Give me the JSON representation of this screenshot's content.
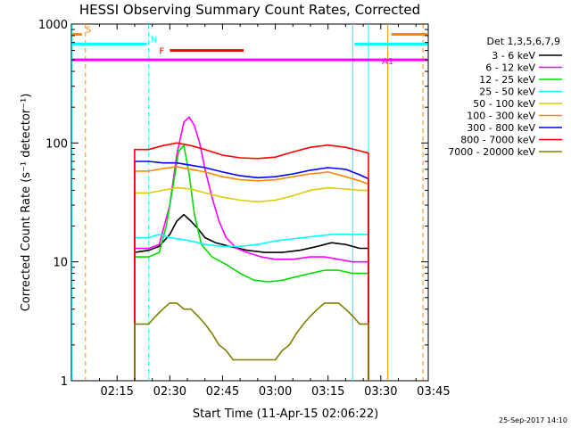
{
  "chart_data": {
    "type": "line",
    "title": "HESSI Observing Summary Count Rates, Corrected",
    "xlabel": "Start Time (11-Apr-15 02:06:22)",
    "ylabel": "Corrected Count Rate (s⁻¹ detector⁻¹)",
    "yscale": "log",
    "xlim_minutes": [
      2.0,
      103.5
    ],
    "ylim": [
      1,
      1000
    ],
    "x_tick_labels": [
      "02:15",
      "02:30",
      "02:45",
      "03:00",
      "03:15",
      "03:30",
      "03:45"
    ],
    "x_tick_minutes": [
      15,
      30,
      45,
      60,
      75,
      90,
      105
    ],
    "y_tick_labels": [
      "1",
      "10",
      "100",
      "1000"
    ],
    "y_tick_values": [
      1,
      10,
      100,
      1000
    ],
    "legend_header": "Det 1,3,5,6,7,9",
    "stamp": "25-Sep-2017 14:10",
    "series": [
      {
        "name": "3 - 6 keV",
        "color": "#000000",
        "x": [
          20,
          24,
          27,
          30,
          32,
          34,
          36,
          38,
          40,
          43,
          47,
          52,
          57,
          62,
          67,
          72,
          76,
          80,
          84,
          86.5
        ],
        "y": [
          12,
          12.5,
          13.5,
          17,
          22,
          25,
          22,
          19,
          16,
          14.5,
          13.5,
          12.5,
          12,
          12,
          12.5,
          13.5,
          14.5,
          14,
          13,
          13
        ]
      },
      {
        "name": "6 - 12 keV",
        "color": "#ff00ff",
        "x": [
          20,
          24,
          27,
          30,
          32,
          34,
          35.5,
          37,
          38.5,
          40,
          42,
          44,
          46,
          49,
          52,
          56,
          60,
          65,
          70,
          74,
          78,
          82,
          86.5
        ],
        "y": [
          13,
          13,
          14,
          30,
          80,
          150,
          165,
          140,
          100,
          60,
          35,
          22,
          16,
          13,
          12,
          11,
          10.5,
          10.5,
          11,
          11,
          10.5,
          10,
          10
        ]
      },
      {
        "name": "12 - 25 keV",
        "color": "#00dd00",
        "x": [
          20,
          24,
          27,
          29,
          31,
          32.5,
          34,
          35.5,
          37,
          39,
          42,
          46,
          50,
          54,
          58,
          62,
          66,
          70,
          74,
          78,
          82,
          86.5
        ],
        "y": [
          11,
          11,
          12,
          20,
          45,
          85,
          95,
          55,
          25,
          14,
          11,
          9.5,
          8,
          7,
          6.8,
          7,
          7.5,
          8,
          8.5,
          8.5,
          8,
          8
        ]
      },
      {
        "name": "25 - 50 keV",
        "color": "#00ffff",
        "x": [
          20,
          24,
          27,
          30,
          33,
          36,
          40,
          45,
          50,
          55,
          60,
          64,
          68,
          72,
          76,
          80,
          84,
          86.5
        ],
        "y": [
          16,
          16,
          17,
          16,
          15.5,
          15,
          14,
          13.5,
          13.5,
          14,
          15,
          15.5,
          16,
          16.5,
          17,
          17,
          17,
          17
        ]
      },
      {
        "name": "50 - 100 keV",
        "color": "#ddcc00",
        "x": [
          20,
          24,
          28,
          32,
          36,
          40,
          45,
          50,
          55,
          60,
          65,
          70,
          75,
          80,
          84,
          86.5
        ],
        "y": [
          38,
          38,
          40,
          42,
          41,
          38,
          35,
          33,
          32,
          33,
          36,
          40,
          42,
          41,
          40,
          40
        ]
      },
      {
        "name": "100 - 300 keV",
        "color": "#ff8800",
        "x": [
          20,
          24,
          28,
          32,
          36,
          40,
          45,
          50,
          55,
          60,
          65,
          70,
          75,
          80,
          84,
          86.5
        ],
        "y": [
          58,
          58,
          61,
          63,
          60,
          57,
          52,
          49,
          48,
          49,
          52,
          55,
          57,
          52,
          48,
          45
        ]
      },
      {
        "name": "300 - 800 keV",
        "color": "#0000ff",
        "x": [
          20,
          24,
          28,
          32,
          36,
          40,
          45,
          50,
          55,
          60,
          65,
          70,
          75,
          80,
          84,
          86.5
        ],
        "y": [
          70,
          70,
          68,
          68,
          65,
          62,
          57,
          53,
          51,
          52,
          55,
          59,
          62,
          60,
          54,
          50
        ]
      },
      {
        "name": "800 - 7000 keV",
        "color": "#ff0000",
        "x": [
          20,
          24,
          28,
          32,
          36,
          40,
          45,
          50,
          55,
          60,
          65,
          70,
          75,
          80,
          84,
          86.5
        ],
        "y": [
          88,
          88,
          95,
          100,
          95,
          88,
          79,
          75,
          74,
          76,
          84,
          92,
          96,
          92,
          86,
          82
        ]
      },
      {
        "name": "7000 - 20000 keV",
        "color": "#808000",
        "x": [
          20,
          22,
          24,
          26,
          28,
          30,
          32,
          34,
          36,
          38,
          40,
          42,
          44,
          46,
          48,
          50,
          52,
          54,
          56,
          58,
          60,
          62,
          64,
          66,
          68,
          70,
          72,
          74,
          76,
          78,
          80,
          82,
          84,
          86.5
        ],
        "y": [
          3,
          3,
          3,
          3.5,
          4,
          4.5,
          4.5,
          4,
          4,
          3.5,
          3,
          2.5,
          2,
          1.8,
          1.5,
          1.5,
          1.5,
          1.5,
          1.5,
          1.5,
          1.5,
          1.8,
          2,
          2.5,
          3,
          3.5,
          4,
          4.5,
          4.5,
          4.5,
          4,
          3.5,
          3,
          3
        ]
      }
    ],
    "vertical_lines": [
      {
        "minute": 2.2,
        "color": "#00ffff",
        "dashed": false
      },
      {
        "minute": 6.0,
        "color": "#ff8800",
        "dashed": true
      },
      {
        "minute": 24.0,
        "color": "#00ffff",
        "dashed": true
      },
      {
        "minute": 82.0,
        "color": "#00ffff",
        "dashed": false
      },
      {
        "minute": 86.5,
        "color": "#00ffff",
        "dashed": false
      },
      {
        "minute": 92.0,
        "color": "#ff8800",
        "dashed": false
      },
      {
        "minute": 102.0,
        "color": "#ff8800",
        "dashed": true
      }
    ],
    "annotation_bars": [
      {
        "label": "S",
        "color": "#ff8800",
        "x0": 2.0,
        "x1": 5.0,
        "y": 820
      },
      {
        "label": "",
        "color": "#ff8800",
        "x0": 93.0,
        "x1": 103.5,
        "y": 820
      },
      {
        "label": "N",
        "color": "#00ffff",
        "x0": 2.0,
        "x1": 23.5,
        "y": 680
      },
      {
        "label": "",
        "color": "#00ffff",
        "x0": 82.5,
        "x1": 103.5,
        "y": 680
      },
      {
        "label": "F",
        "color": "#ff0000",
        "x0": 30.0,
        "x1": 51.0,
        "y": 600
      },
      {
        "label": "A1",
        "color": "#ff00ff",
        "x0": 2.0,
        "x1": 103.5,
        "y": 500
      }
    ]
  }
}
